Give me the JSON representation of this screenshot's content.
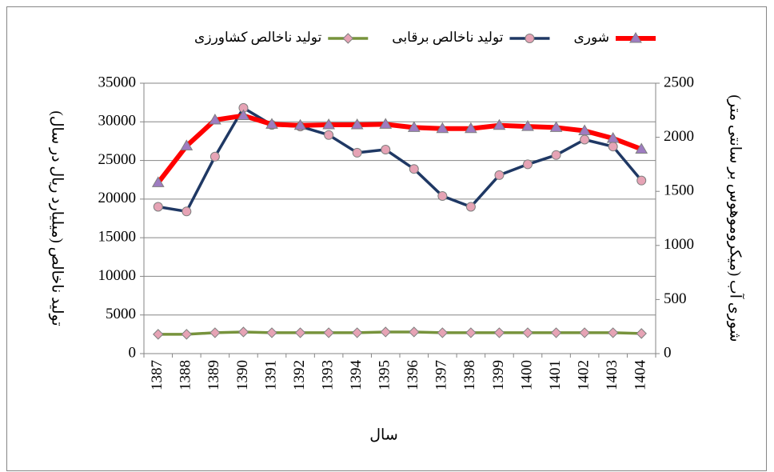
{
  "chart_data": {
    "type": "line",
    "x_label": "سال",
    "y_label": "تولید ناخالص (میلیارد ریال در سال)",
    "y2_label": "شوری آب (میکروموهوس بر سانتی متر)",
    "categories": [
      "1387",
      "1388",
      "1389",
      "1390",
      "1391",
      "1392",
      "1393",
      "1394",
      "1395",
      "1396",
      "1397",
      "1398",
      "1399",
      "1400",
      "1401",
      "1402",
      "1403",
      "1404"
    ],
    "ylim": [
      0,
      35000
    ],
    "yticks": [
      0,
      5000,
      10000,
      15000,
      20000,
      25000,
      30000,
      35000
    ],
    "y2lim": [
      0,
      2500
    ],
    "y2ticks": [
      0,
      500,
      1000,
      1500,
      2000,
      2500
    ],
    "grid": true,
    "series": [
      {
        "name": "تولید ناخالص کشاورزی",
        "color": "#77933c",
        "marker": "diamond",
        "marker_color": "#e6a3b5",
        "values": [
          2500,
          2500,
          2700,
          2800,
          2700,
          2700,
          2700,
          2700,
          2800,
          2800,
          2700,
          2700,
          2700,
          2700,
          2700,
          2700,
          2700,
          2600
        ]
      },
      {
        "name": "تولید ناخالص برقابی",
        "color": "#1f3864",
        "marker": "circle",
        "marker_color": "#e6a3b5",
        "values": [
          19000,
          18400,
          25500,
          31800,
          29600,
          29400,
          28300,
          26000,
          26400,
          23900,
          20400,
          19000,
          23100,
          24500,
          25700,
          27700,
          26800,
          22400
        ]
      },
      {
        "name": "شوری",
        "color": "#ff0000",
        "marker": "triangle",
        "marker_color": "#9e7cc1",
        "axis": "y2",
        "values": [
          1580,
          1920,
          2160,
          2200,
          2120,
          2110,
          2115,
          2115,
          2120,
          2090,
          2080,
          2080,
          2110,
          2100,
          2090,
          2060,
          1990,
          1890
        ]
      }
    ]
  }
}
